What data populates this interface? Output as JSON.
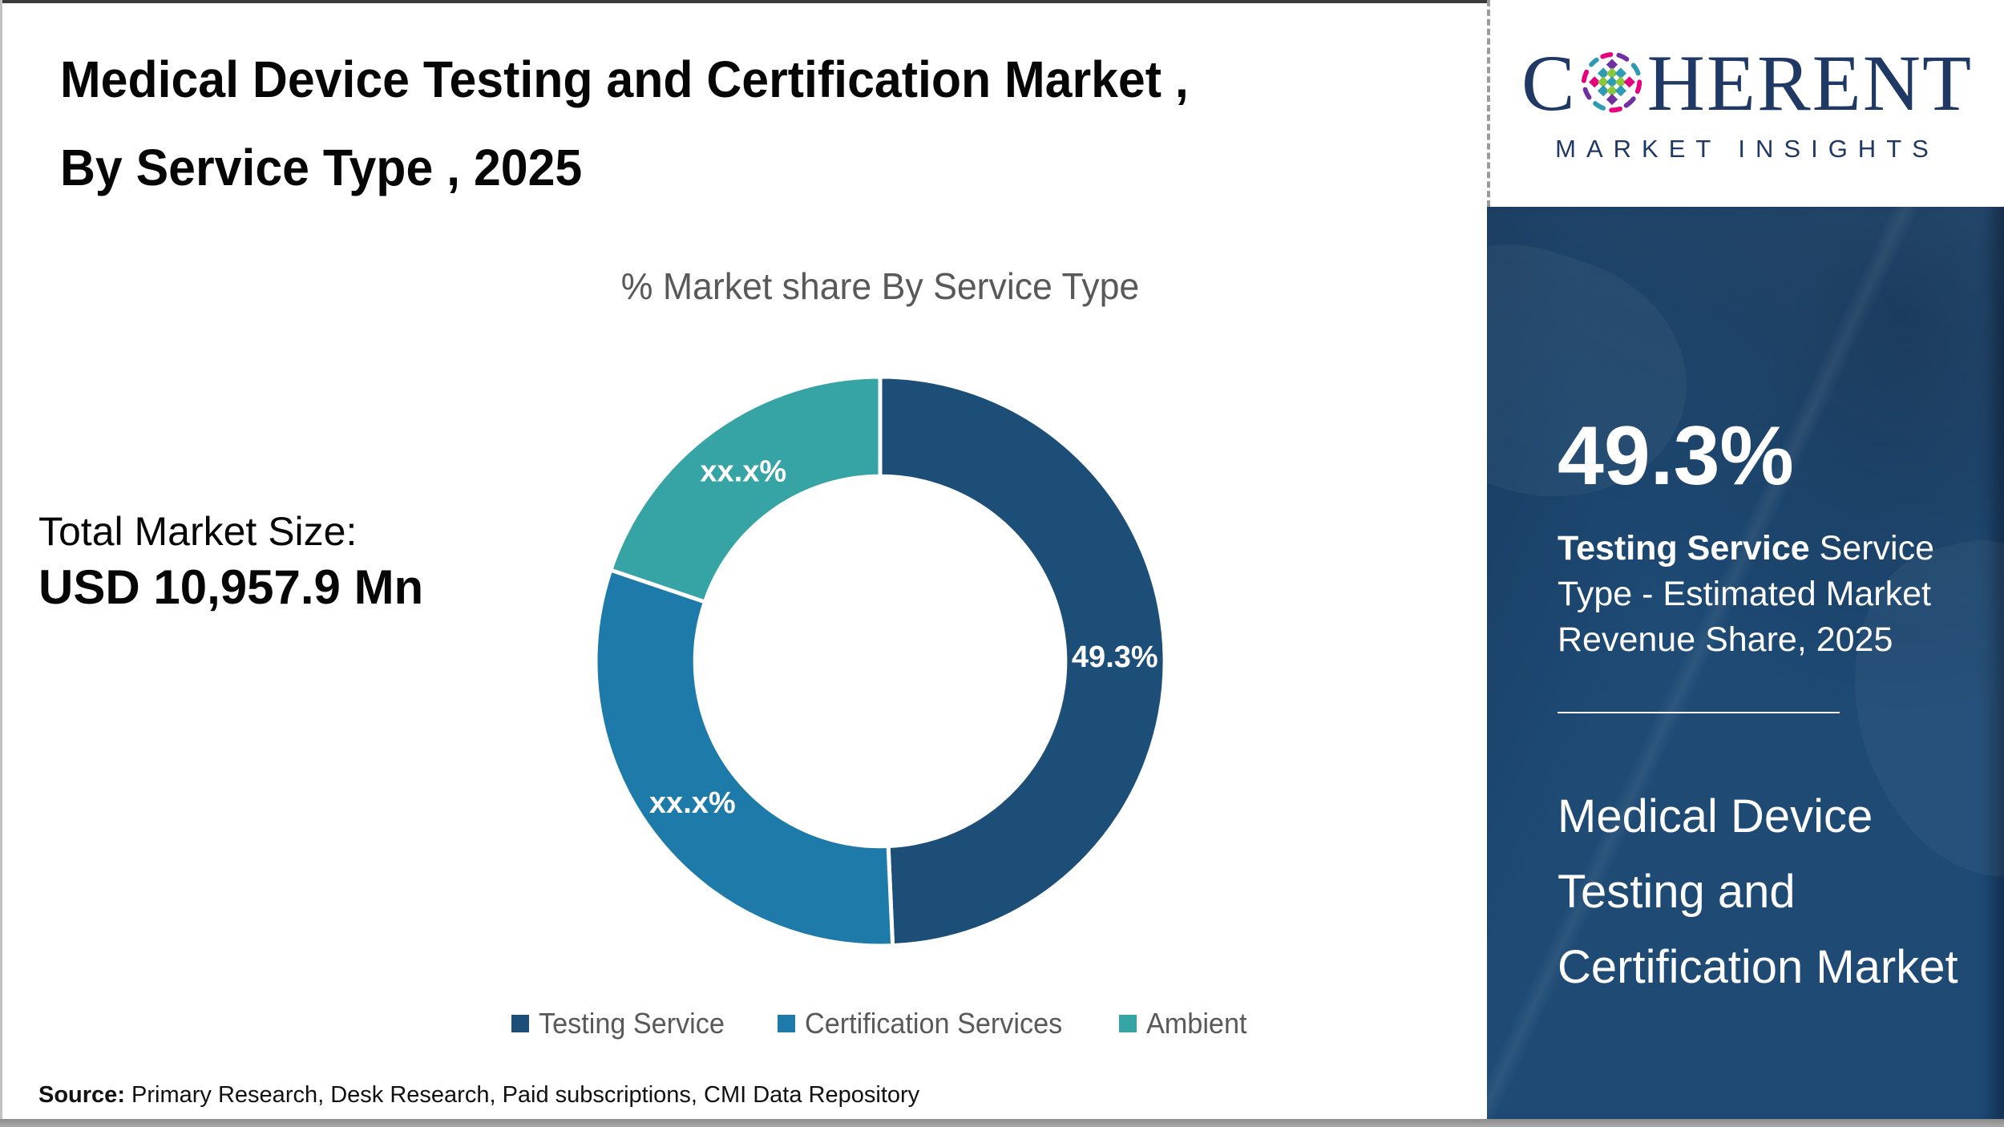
{
  "header": {
    "title_line1": "Medical Device Testing and Certification Market ,",
    "title_line2": "By Service Type , 2025"
  },
  "logo": {
    "brand_prefix": "C",
    "brand_suffix": "HERENT",
    "brand_subtitle": "MARKET INSIGHTS",
    "brand_color": "#1f3864"
  },
  "left_panel": {
    "total_label": "Total Market Size:",
    "total_value": "USD 10,957.9 Mn"
  },
  "chart_data": {
    "type": "pie",
    "donut": true,
    "title": "% Market share By Service Type",
    "start_angle_deg": 0,
    "direction": "clockwise",
    "inner_radius_ratio": 0.65,
    "legend_position": "bottom",
    "segments": [
      {
        "label": "Testing Service",
        "display_value": "49.3%",
        "value_pct": 49.3,
        "color": "#1d4e78"
      },
      {
        "label": "Certification Services",
        "display_value": "xx.x%",
        "value_pct": 30.9,
        "color": "#1e7aa8"
      },
      {
        "label": "Ambient",
        "display_value": "xx.x%",
        "value_pct": 19.8,
        "color": "#36a3a4"
      }
    ]
  },
  "sidebar": {
    "stat_value": "49.3%",
    "stat_bold": "Testing Service",
    "stat_rest": " Service Type - Estimated Market Revenue Share, 2025",
    "market_name": "Medical Device Testing and Certification Market"
  },
  "footer": {
    "source_label": "Source:",
    "source_text": " Primary Research, Desk Research, Paid subscriptions, CMI Data Repository"
  }
}
